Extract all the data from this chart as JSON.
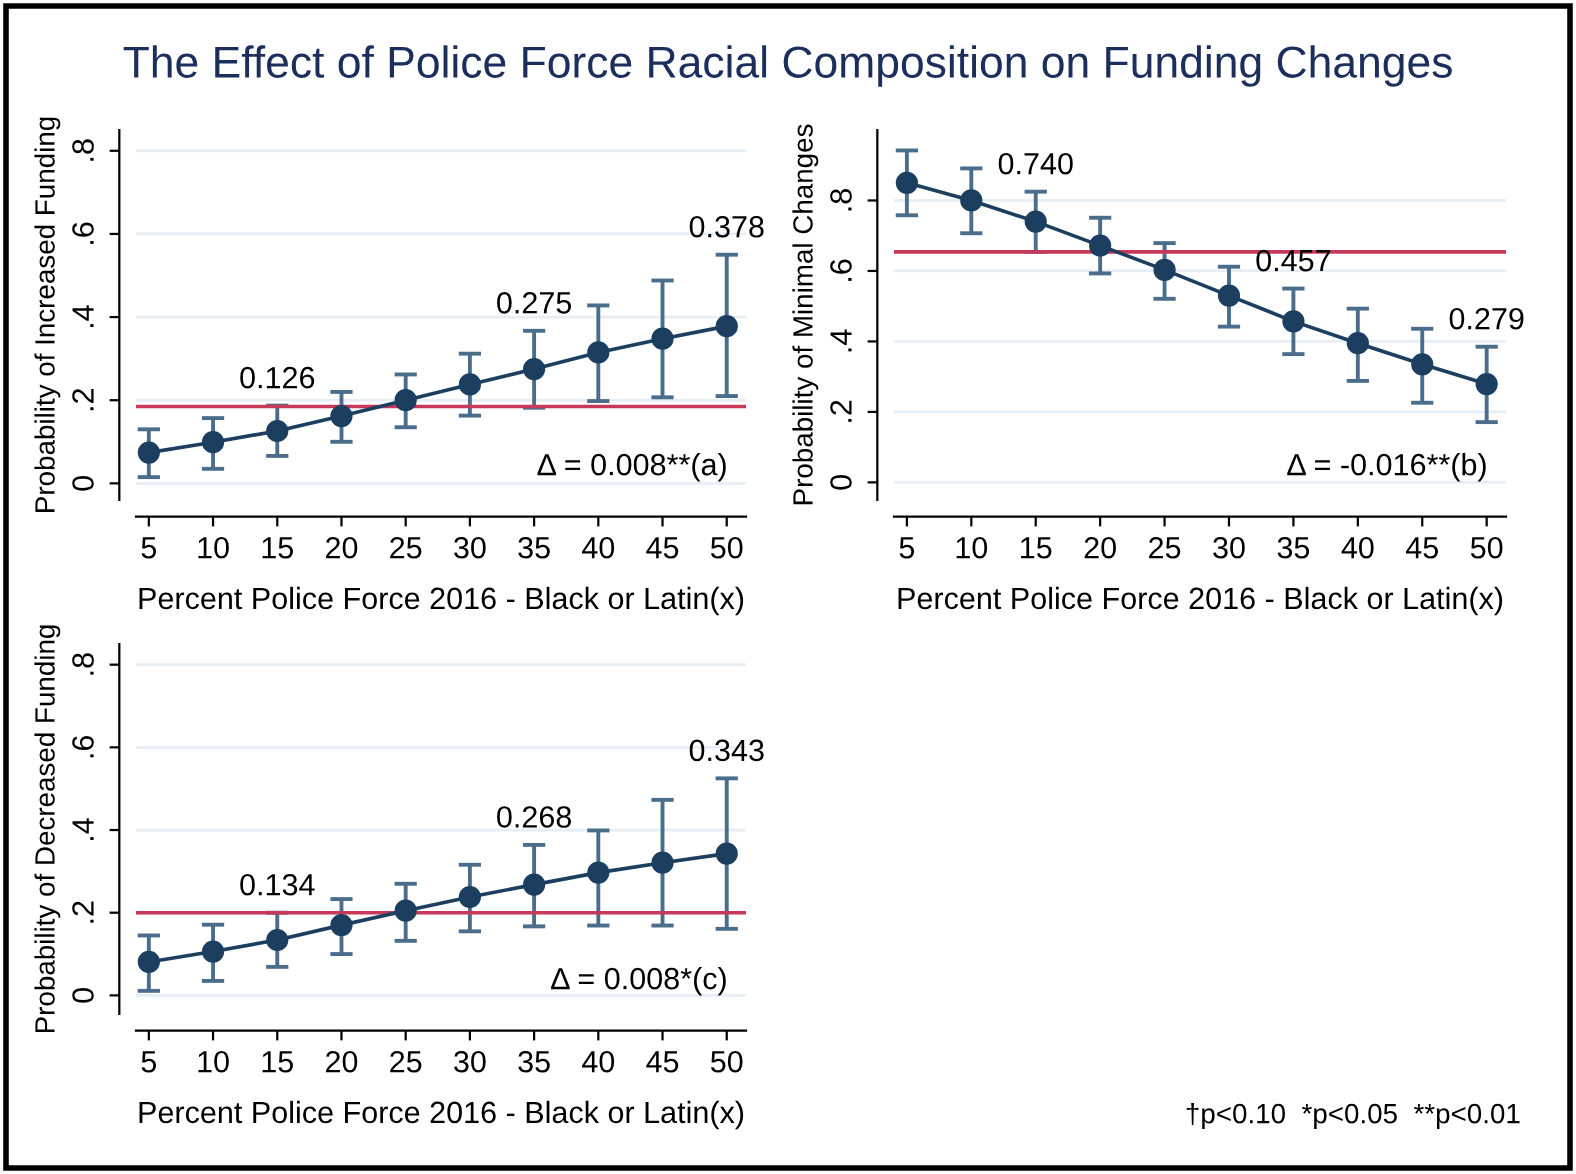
{
  "chart_data": [
    {
      "type": "line",
      "title": "The Effect of Police Force Racial Composition on Funding Changes",
      "xlabel": "Percent Police Force 2016 - Black or Latin(x)",
      "ylabel": "Probability of Increased Funding",
      "x": [
        5,
        10,
        15,
        20,
        25,
        30,
        35,
        40,
        45,
        50
      ],
      "series": [
        {
          "color": "#1c3f60",
          "values": [
            0.074,
            0.099,
            0.126,
            0.162,
            0.2,
            0.238,
            0.275,
            0.315,
            0.348,
            0.378
          ],
          "errors": [
            [
              0.015,
              0.13
            ],
            [
              0.035,
              0.157
            ],
            [
              0.066,
              0.187
            ],
            [
              0.1,
              0.22
            ],
            [
              0.135,
              0.262
            ],
            [
              0.163,
              0.312
            ],
            [
              0.182,
              0.367
            ],
            [
              0.198,
              0.428
            ],
            [
              0.207,
              0.488
            ],
            [
              0.21,
              0.55
            ]
          ],
          "value_labels": [
            null,
            null,
            "0.126",
            null,
            null,
            null,
            "0.275",
            null,
            null,
            "0.378"
          ]
        }
      ],
      "xlim": [
        4,
        51.5
      ],
      "xticks": [
        5,
        10,
        15,
        20,
        25,
        30,
        35,
        40,
        45,
        50
      ],
      "ylim": [
        -0.04,
        0.85
      ],
      "yticks": [
        0,
        {
          "value": 0.2,
          "label": ".2"
        },
        {
          "value": 0.4,
          "label": ".4"
        },
        {
          "value": 0.6,
          "label": ".6"
        },
        {
          "value": 0.8,
          "label": ".8"
        }
      ],
      "ref_lines": [
        {
          "axis": "y",
          "value": 0.185,
          "color": "#c8385a"
        }
      ],
      "annotations": [
        "Δ = 0.008**(a)"
      ],
      "grid": "y",
      "marker": "circle",
      "line_style": "solid"
    },
    {
      "type": "line",
      "xlabel": "Percent Police Force 2016 - Black or Latin(x)",
      "ylabel": "Probability of Minimal Changes",
      "x": [
        5,
        10,
        15,
        20,
        25,
        30,
        35,
        40,
        45,
        50
      ],
      "series": [
        {
          "color": "#1c3f60",
          "values": [
            0.85,
            0.8,
            0.74,
            0.672,
            0.603,
            0.53,
            0.457,
            0.395,
            0.335,
            0.279
          ],
          "errors": [
            [
              0.758,
              0.942
            ],
            [
              0.707,
              0.891
            ],
            [
              0.654,
              0.825
            ],
            [
              0.593,
              0.751
            ],
            [
              0.521,
              0.679
            ],
            [
              0.442,
              0.612
            ],
            [
              0.364,
              0.55
            ],
            [
              0.288,
              0.493
            ],
            [
              0.226,
              0.436
            ],
            [
              0.171,
              0.385
            ]
          ],
          "value_labels": [
            null,
            null,
            "0.740",
            null,
            null,
            null,
            "0.457",
            null,
            null,
            "0.279"
          ]
        }
      ],
      "xlim": [
        4,
        51.5
      ],
      "xticks": [
        5,
        10,
        15,
        20,
        25,
        30,
        35,
        40,
        45,
        50
      ],
      "ylim": [
        -0.05,
        1.0
      ],
      "yticks": [
        0,
        {
          "value": 0.2,
          "label": ".2"
        },
        {
          "value": 0.4,
          "label": ".4"
        },
        {
          "value": 0.6,
          "label": ".6"
        },
        {
          "value": 0.8,
          "label": ".8"
        }
      ],
      "ref_lines": [
        {
          "axis": "y",
          "value": 0.654,
          "color": "#c8385a"
        }
      ],
      "annotations": [
        "Δ = -0.016**(b)"
      ],
      "grid": "y",
      "marker": "circle",
      "line_style": "solid"
    },
    {
      "type": "line",
      "xlabel": "Percent Police Force 2016 - Black or Latin(x)",
      "ylabel": "Probability of Decreased Funding",
      "x": [
        5,
        10,
        15,
        20,
        25,
        30,
        35,
        40,
        45,
        50
      ],
      "series": [
        {
          "color": "#1c3f60",
          "values": [
            0.081,
            0.106,
            0.134,
            0.17,
            0.205,
            0.238,
            0.268,
            0.297,
            0.321,
            0.343
          ],
          "errors": [
            [
              0.011,
              0.145
            ],
            [
              0.035,
              0.171
            ],
            [
              0.069,
              0.2
            ],
            [
              0.1,
              0.233
            ],
            [
              0.132,
              0.27
            ],
            [
              0.155,
              0.316
            ],
            [
              0.167,
              0.364
            ],
            [
              0.169,
              0.399
            ],
            [
              0.169,
              0.473
            ],
            [
              0.161,
              0.525
            ]
          ],
          "value_labels": [
            null,
            null,
            "0.134",
            null,
            null,
            null,
            "0.268",
            null,
            null,
            "0.343"
          ]
        }
      ],
      "xlim": [
        4,
        51.5
      ],
      "xticks": [
        5,
        10,
        15,
        20,
        25,
        30,
        35,
        40,
        45,
        50
      ],
      "ylim": [
        -0.045,
        0.85
      ],
      "yticks": [
        0,
        {
          "value": 0.2,
          "label": ".2"
        },
        {
          "value": 0.4,
          "label": ".4"
        },
        {
          "value": 0.6,
          "label": ".6"
        },
        {
          "value": 0.8,
          "label": ".8"
        }
      ],
      "ref_lines": [
        {
          "axis": "y",
          "value": 0.2,
          "color": "#c8385a"
        }
      ],
      "annotations": [
        "Δ = 0.008*(c)",
        "†p<0.10  *p<0.05  **p<0.01"
      ],
      "grid": "y",
      "marker": "circle",
      "line_style": "solid"
    }
  ]
}
